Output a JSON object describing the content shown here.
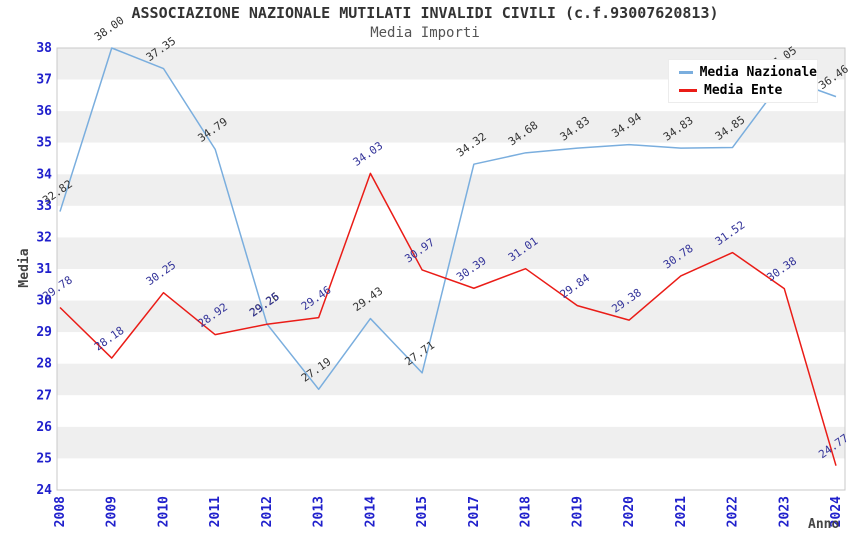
{
  "chart_data": {
    "type": "line",
    "title": "ASSOCIAZIONE NAZIONALE MUTILATI INVALIDI CIVILI (c.f.93007620813)",
    "subtitle": "Media Importi",
    "xlabel": "Anno",
    "ylabel": "Media",
    "ylim": [
      24,
      38
    ],
    "ytick_step": 1,
    "grid": "horizontal-alternating-bands",
    "legend_position": "top-right",
    "categories": [
      "2008",
      "2009",
      "2010",
      "2011",
      "2012",
      "2013",
      "2014",
      "2015",
      "2017",
      "2018",
      "2019",
      "2020",
      "2021",
      "2022",
      "2023",
      "2024"
    ],
    "series": [
      {
        "name": "Media Nazionale",
        "color": "#7aaede",
        "label_color": "#333333",
        "values": [
          32.82,
          38.0,
          37.35,
          34.79,
          29.26,
          27.19,
          29.43,
          27.71,
          34.32,
          34.68,
          34.83,
          34.94,
          34.83,
          34.85,
          37.05,
          36.46
        ]
      },
      {
        "name": "Media Ente",
        "color": "#ea1c17",
        "label_color": "#333399",
        "values": [
          29.78,
          28.18,
          30.25,
          28.92,
          29.25,
          29.46,
          34.03,
          30.97,
          30.39,
          31.01,
          29.84,
          29.38,
          30.78,
          31.52,
          30.38,
          24.77
        ]
      }
    ],
    "colors": {
      "axis_tick": "#2020cc",
      "band": "#efefef",
      "border": "#c8c8c8",
      "axis_title": "#444444",
      "title": "#333333",
      "subtitle": "#555555",
      "legend_text": "#000000"
    }
  }
}
